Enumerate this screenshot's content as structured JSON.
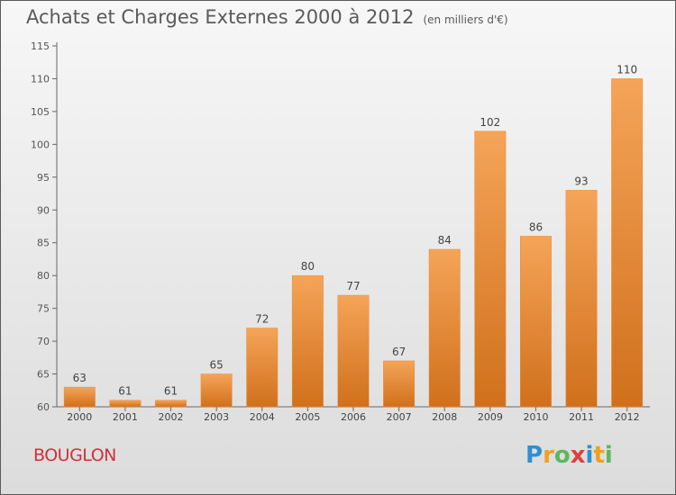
{
  "title": "Achats et Charges Externes 2000 à 2012",
  "subtitle": "(en milliers d'€)",
  "place": "BOUGLON",
  "logo": {
    "letters": [
      "P",
      "r",
      "o",
      "x",
      "i",
      "t",
      "i"
    ],
    "colors": [
      "#2f8fd0",
      "#f0a020",
      "#5cb85c",
      "#e0403c",
      "#2f8fd0",
      "#f0a020",
      "#5cb85c"
    ]
  },
  "colors": {
    "bar": "#f08a2e",
    "bar_light": "#f5a458",
    "bar_dark": "#d0701c",
    "label": "#444444",
    "grid": "#bbbbbb"
  },
  "chart_data": {
    "type": "bar",
    "categories": [
      "2000",
      "2001",
      "2002",
      "2003",
      "2004",
      "2005",
      "2006",
      "2007",
      "2008",
      "2009",
      "2010",
      "2011",
      "2012"
    ],
    "values": [
      63,
      61,
      61,
      65,
      72,
      80,
      77,
      67,
      84,
      102,
      86,
      93,
      110
    ],
    "ylim": [
      60,
      115
    ],
    "yticks": [
      60,
      65,
      70,
      75,
      80,
      85,
      90,
      95,
      100,
      105,
      110,
      115
    ],
    "grid": false,
    "legend": "none"
  }
}
